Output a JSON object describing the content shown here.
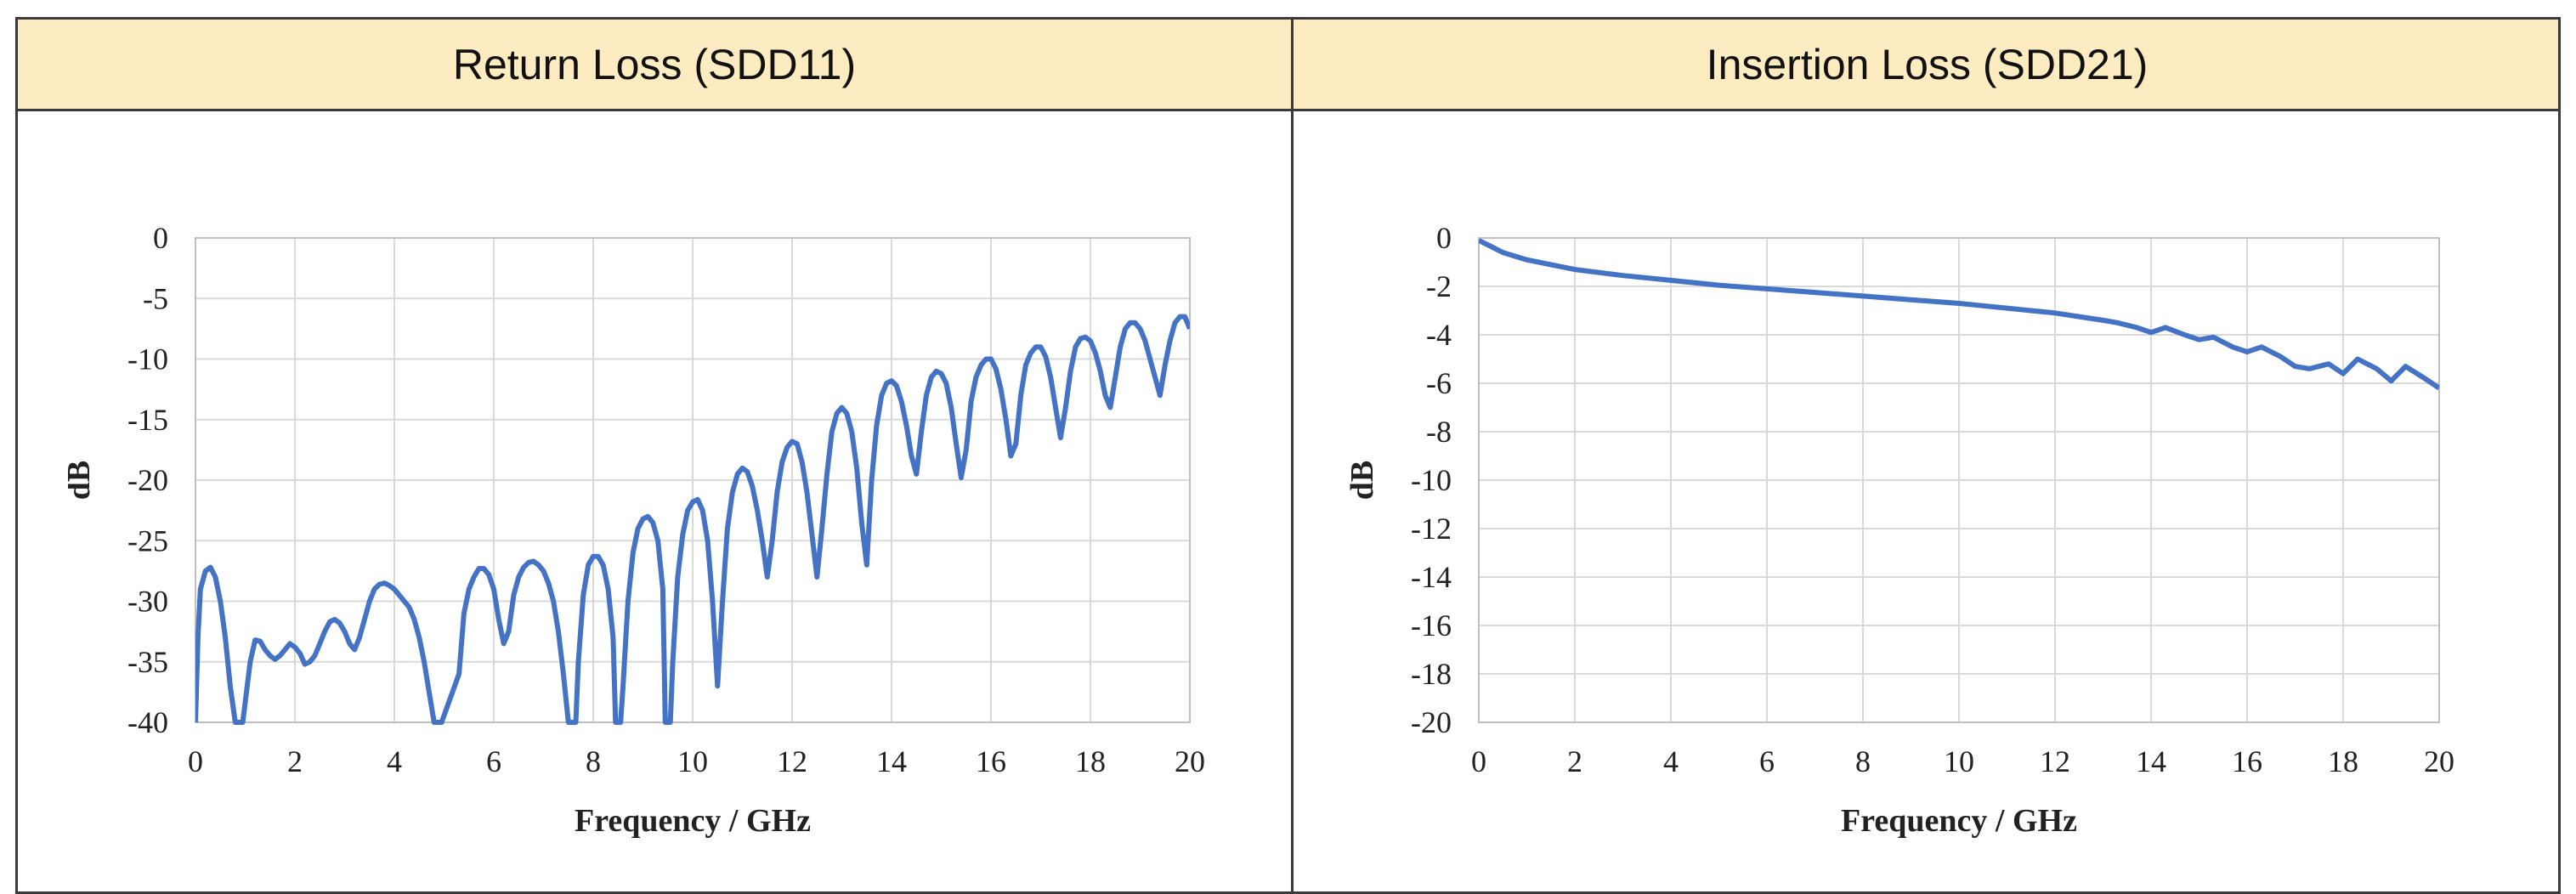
{
  "headers": {
    "left": "Return Loss (SDD11)",
    "right": "Insertion Loss (SDD21)"
  },
  "colors": {
    "header_bg": "#fdebc1",
    "line": "#4472c4",
    "grid": "#d9d9d9",
    "border": "#3a3a3a"
  },
  "chart_data": [
    {
      "type": "line",
      "title": "Return Loss (SDD11)",
      "xlabel": "Frequency / GHz",
      "ylabel": "dB",
      "xlim": [
        0,
        20
      ],
      "ylim": [
        -40,
        0
      ],
      "xticks": [
        0,
        2,
        4,
        6,
        8,
        10,
        12,
        14,
        16,
        18,
        20
      ],
      "yticks": [
        0,
        -5,
        -10,
        -15,
        -20,
        -25,
        -30,
        -35,
        -40
      ],
      "grid": true,
      "series": [
        {
          "x": [
            0,
            0.05,
            0.1,
            0.2,
            0.3,
            0.4,
            0.5,
            0.6,
            0.7,
            0.8,
            0.9,
            0.95,
            1.1,
            1.2,
            1.3,
            1.4,
            1.5,
            1.6,
            1.7,
            1.8,
            1.9,
            2.0,
            2.1,
            2.2,
            2.3,
            2.4,
            2.5,
            2.6,
            2.7,
            2.8,
            2.9,
            3.0,
            3.1,
            3.2,
            3.3,
            3.4,
            3.5,
            3.6,
            3.7,
            3.8,
            3.9,
            4.0,
            4.1,
            4.2,
            4.3,
            4.4,
            4.5,
            4.6,
            4.7,
            4.8,
            4.9,
            4.95,
            5.3,
            5.4,
            5.5,
            5.6,
            5.7,
            5.8,
            5.9,
            6.0,
            6.1,
            6.2,
            6.3,
            6.4,
            6.5,
            6.6,
            6.7,
            6.8,
            6.9,
            7.0,
            7.1,
            7.2,
            7.3,
            7.4,
            7.5,
            7.55,
            7.65,
            7.7,
            7.8,
            7.9,
            8.0,
            8.1,
            8.2,
            8.3,
            8.4,
            8.45,
            8.55,
            8.6,
            8.7,
            8.8,
            8.9,
            9.0,
            9.1,
            9.2,
            9.3,
            9.4,
            9.45,
            9.55,
            9.6,
            9.7,
            9.8,
            9.9,
            10.0,
            10.1,
            10.2,
            10.3,
            10.4,
            10.5,
            10.6,
            10.7,
            10.8,
            10.9,
            11.0,
            11.1,
            11.2,
            11.3,
            11.4,
            11.5,
            11.6,
            11.7,
            11.8,
            11.9,
            12.0,
            12.1,
            12.2,
            12.3,
            12.4,
            12.5,
            12.6,
            12.7,
            12.8,
            12.9,
            13.0,
            13.1,
            13.2,
            13.3,
            13.4,
            13.5,
            13.6,
            13.7,
            13.8,
            13.9,
            14.0,
            14.1,
            14.2,
            14.3,
            14.4,
            14.5,
            14.6,
            14.7,
            14.8,
            14.9,
            15.0,
            15.1,
            15.2,
            15.3,
            15.4,
            15.5,
            15.6,
            15.7,
            15.8,
            15.9,
            16.0,
            16.1,
            16.2,
            16.3,
            16.4,
            16.5,
            16.6,
            16.7,
            16.8,
            16.9,
            17.0,
            17.1,
            17.2,
            17.3,
            17.4,
            17.5,
            17.6,
            17.7,
            17.8,
            17.9,
            18.0,
            18.1,
            18.2,
            18.3,
            18.4,
            18.5,
            18.6,
            18.7,
            18.8,
            18.9,
            19.0,
            19.1,
            19.2,
            19.3,
            19.4,
            19.5,
            19.6,
            19.7,
            19.8,
            19.9,
            20.0
          ],
          "y": [
            -40,
            -33,
            -29,
            -27.5,
            -27.2,
            -28.0,
            -30.0,
            -33.0,
            -37.0,
            -40,
            -40,
            -40,
            -35.0,
            -33.2,
            -33.3,
            -34.0,
            -34.5,
            -34.8,
            -34.5,
            -34.0,
            -33.5,
            -33.8,
            -34.3,
            -35.2,
            -35.0,
            -34.5,
            -33.5,
            -32.5,
            -31.7,
            -31.5,
            -31.8,
            -32.5,
            -33.5,
            -34.0,
            -33.0,
            -31.5,
            -30.0,
            -29.0,
            -28.6,
            -28.5,
            -28.7,
            -29.0,
            -29.5,
            -30.0,
            -30.5,
            -31.5,
            -33.0,
            -35.0,
            -37.5,
            -40,
            -40,
            -40,
            -36.0,
            -31.0,
            -29.0,
            -28.0,
            -27.3,
            -27.3,
            -27.8,
            -29.0,
            -31.5,
            -33.5,
            -32.5,
            -29.5,
            -28.0,
            -27.2,
            -26.8,
            -26.7,
            -27.0,
            -27.5,
            -28.5,
            -30.0,
            -32.5,
            -36.0,
            -40,
            -40,
            -40,
            -35.0,
            -29.5,
            -27.0,
            -26.3,
            -26.3,
            -27.0,
            -29.0,
            -33.0,
            -40,
            -40,
            -37.0,
            -30.0,
            -26.0,
            -24.0,
            -23.2,
            -23.0,
            -23.5,
            -25.0,
            -29.0,
            -40,
            -40,
            -35.0,
            -28.0,
            -24.5,
            -22.5,
            -21.8,
            -21.6,
            -22.5,
            -25.0,
            -30.0,
            -37.0,
            -30.0,
            -24.0,
            -21.0,
            -19.5,
            -19.0,
            -19.3,
            -20.5,
            -22.5,
            -25.0,
            -28.0,
            -25.0,
            -21.0,
            -18.5,
            -17.3,
            -16.8,
            -17.0,
            -18.5,
            -21.0,
            -24.5,
            -28.0,
            -24.0,
            -19.5,
            -16.0,
            -14.5,
            -14.0,
            -14.5,
            -16.0,
            -19.0,
            -23.5,
            -27.0,
            -20.0,
            -15.5,
            -13.0,
            -12.0,
            -11.8,
            -12.2,
            -13.5,
            -15.5,
            -18.0,
            -19.5,
            -16.0,
            -13.0,
            -11.5,
            -11.0,
            -11.2,
            -12.0,
            -14.0,
            -17.0,
            -19.8,
            -17.5,
            -13.5,
            -11.5,
            -10.5,
            -10.0,
            -10.0,
            -10.8,
            -12.5,
            -15.0,
            -18.0,
            -17.0,
            -13.0,
            -10.5,
            -9.5,
            -9.0,
            -9.0,
            -9.8,
            -11.5,
            -14.0,
            -16.5,
            -14.0,
            -11.0,
            -9.0,
            -8.3,
            -8.2,
            -8.5,
            -9.5,
            -11.0,
            -13.0,
            -14.0,
            -11.5,
            -9.0,
            -7.5,
            -7.0,
            -7.0,
            -7.5,
            -8.5,
            -10.0,
            -11.5,
            -13.0,
            -10.5,
            -8.5,
            -7.0,
            -6.5,
            -6.5,
            -7.5
          ]
        }
      ]
    },
    {
      "type": "line",
      "title": "Insertion Loss (SDD21)",
      "xlabel": "Frequency / GHz",
      "ylabel": "dB",
      "xlim": [
        0,
        20
      ],
      "ylim": [
        -20,
        0
      ],
      "xticks": [
        0,
        2,
        4,
        6,
        8,
        10,
        12,
        14,
        16,
        18,
        20
      ],
      "yticks": [
        0,
        -2,
        -4,
        -6,
        -8,
        -10,
        -12,
        -14,
        -16,
        -18,
        -20
      ],
      "grid": true,
      "series": [
        {
          "x": [
            0,
            0.2,
            0.5,
            1,
            1.5,
            2,
            3,
            4,
            5,
            6,
            7,
            8,
            9,
            10,
            10.5,
            11,
            11.5,
            12,
            12.5,
            13,
            13.3,
            13.7,
            14,
            14.3,
            14.7,
            15,
            15.3,
            15.7,
            16,
            16.3,
            16.7,
            17,
            17.3,
            17.7,
            18,
            18.3,
            18.7,
            19,
            19.3,
            19.7,
            20
          ],
          "y": [
            -0.1,
            -0.3,
            -0.6,
            -0.9,
            -1.1,
            -1.3,
            -1.55,
            -1.75,
            -1.95,
            -2.1,
            -2.25,
            -2.4,
            -2.55,
            -2.7,
            -2.8,
            -2.9,
            -3.0,
            -3.1,
            -3.25,
            -3.4,
            -3.5,
            -3.7,
            -3.9,
            -3.7,
            -4.0,
            -4.2,
            -4.1,
            -4.5,
            -4.7,
            -4.5,
            -4.9,
            -5.3,
            -5.4,
            -5.2,
            -5.6,
            -5.0,
            -5.4,
            -5.9,
            -5.3,
            -5.8,
            -6.2
          ]
        }
      ]
    }
  ]
}
